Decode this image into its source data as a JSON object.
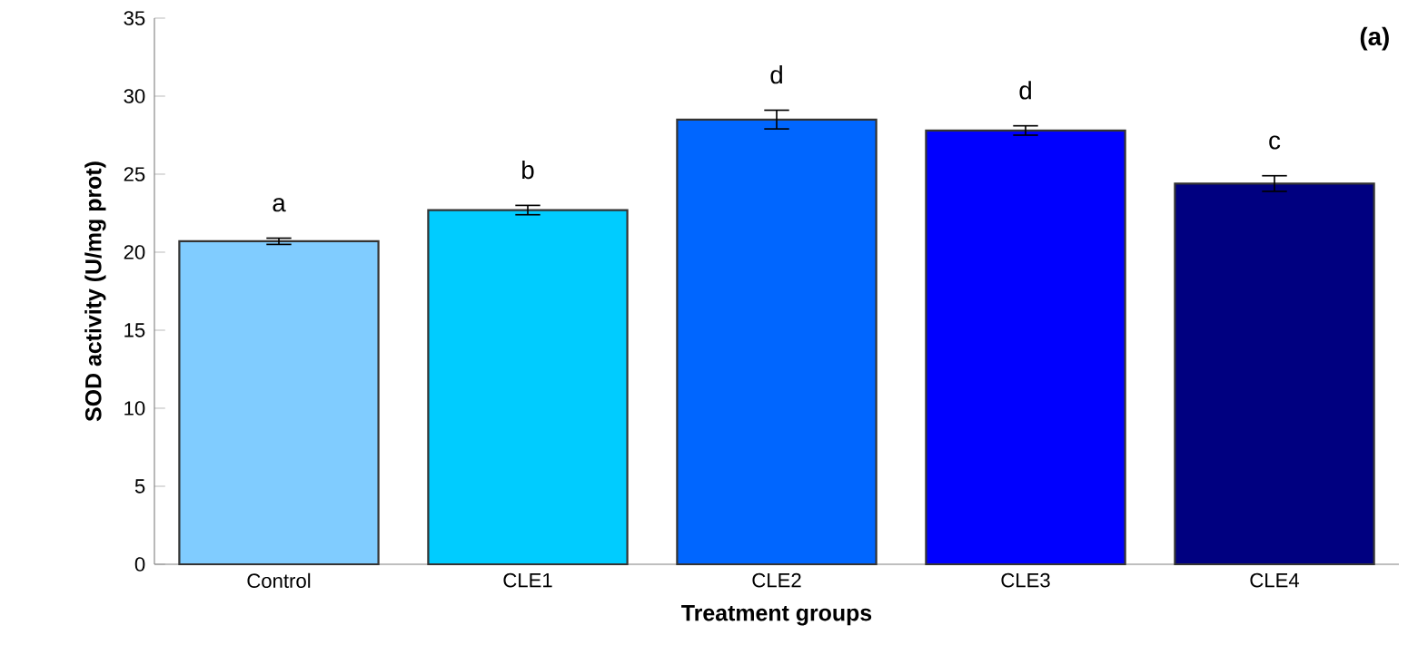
{
  "chart_data": {
    "type": "bar",
    "xlabel": "Treatment groups",
    "ylabel": "SOD activity (U/mg prot)",
    "categories": [
      "Control",
      "CLE1",
      "CLE2",
      "CLE3",
      "CLE4"
    ],
    "values": [
      20.7,
      22.7,
      28.5,
      27.8,
      24.4
    ],
    "errors": [
      0.2,
      0.3,
      0.6,
      0.3,
      0.5
    ],
    "colors": [
      "#80ccff",
      "#00ccff",
      "#0066ff",
      "#0000ff",
      "#000080"
    ],
    "ylim": [
      0,
      35
    ],
    "yticks": [
      0,
      5,
      10,
      15,
      20,
      25,
      30,
      35
    ],
    "grid": false,
    "annotations": [
      "a",
      "b",
      "d",
      "d",
      "c",
      "(a)"
    ]
  }
}
